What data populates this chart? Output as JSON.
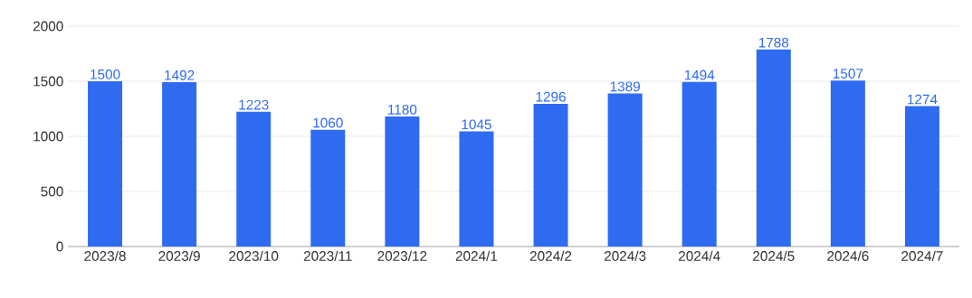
{
  "chart_data": {
    "type": "bar",
    "categories": [
      "2023/8",
      "2023/9",
      "2023/10",
      "2023/11",
      "2023/12",
      "2024/1",
      "2024/2",
      "2024/3",
      "2024/4",
      "2024/5",
      "2024/6",
      "2024/7"
    ],
    "values": [
      1500,
      1492,
      1223,
      1060,
      1180,
      1045,
      1296,
      1389,
      1494,
      1788,
      1507,
      1274
    ],
    "color": "#2e6bf0",
    "ylim": [
      0,
      2000
    ],
    "yticks": [
      0,
      500,
      1000,
      1500,
      2000
    ],
    "grid": "y",
    "data_labels": true
  }
}
